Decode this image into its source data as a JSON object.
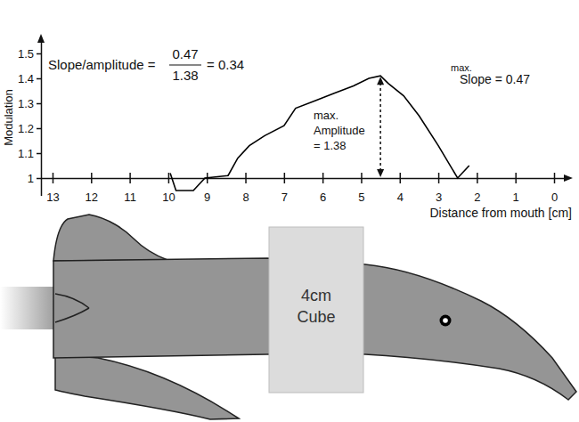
{
  "chart_data": {
    "type": "line",
    "x_label": "Distance from mouth [cm]",
    "y_label": "Modulation",
    "x": [
      9.95,
      9.8,
      9.35,
      9.05,
      8.45,
      8.2,
      7.9,
      7.5,
      7.0,
      6.7,
      6.2,
      5.7,
      5.2,
      4.8,
      4.5,
      4.3,
      3.9,
      3.5,
      3.0,
      2.5,
      2.2
    ],
    "values": [
      1.02,
      0.95,
      0.95,
      1.0,
      1.01,
      1.08,
      1.13,
      1.17,
      1.21,
      1.28,
      1.31,
      1.34,
      1.37,
      1.4,
      1.41,
      1.38,
      1.33,
      1.25,
      1.13,
      1.0,
      1.05
    ],
    "color": "#000000",
    "xlim": [
      13.3,
      -0.3
    ],
    "ylim": [
      0.93,
      1.55
    ],
    "xticks": [
      13,
      12,
      11,
      10,
      9,
      8,
      7,
      6,
      5,
      4,
      3,
      2,
      1,
      0
    ],
    "yticks": [
      1,
      1.1,
      1.2,
      1.3,
      1.4,
      1.5
    ],
    "annotations": {
      "formula": {
        "label": "Slope/amplitude =",
        "numerator": "0.47",
        "denominator": "1.38",
        "result": "= 0.34"
      },
      "amplitude": [
        "max.",
        "Amplitude",
        "= 1.38"
      ],
      "slope": {
        "prefix": "max.",
        "text": "Slope = 0.47"
      }
    }
  },
  "diagram": {
    "cube_label": [
      "4cm",
      "Cube"
    ]
  }
}
